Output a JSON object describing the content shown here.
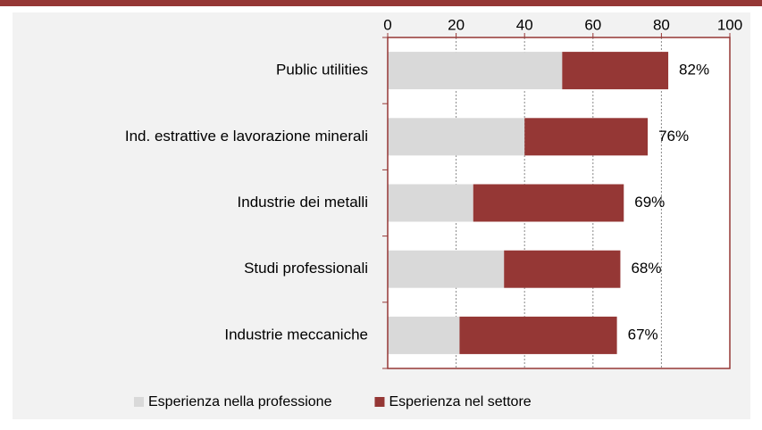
{
  "chart_data": {
    "type": "stacked-bar-horizontal",
    "categories": [
      "Public utilities",
      "Ind. estrattive e lavorazione minerali",
      "Industrie dei metalli",
      "Studi professionali",
      "Industrie meccaniche"
    ],
    "series": [
      {
        "name": "Esperienza nella professione",
        "color": "#d9d9d9",
        "values": [
          51,
          40,
          25,
          34,
          21
        ]
      },
      {
        "name": "Esperienza nel settore",
        "color": "#953735",
        "values": [
          31,
          36,
          44,
          34,
          46
        ]
      }
    ],
    "totals": [
      82,
      76,
      69,
      68,
      67
    ],
    "total_labels": [
      "82%",
      "76%",
      "69%",
      "68%",
      "67%"
    ],
    "xlim": [
      0,
      100
    ],
    "xticks": [
      0,
      20,
      40,
      60,
      80,
      100
    ],
    "grid": true,
    "legend": "bottom"
  }
}
